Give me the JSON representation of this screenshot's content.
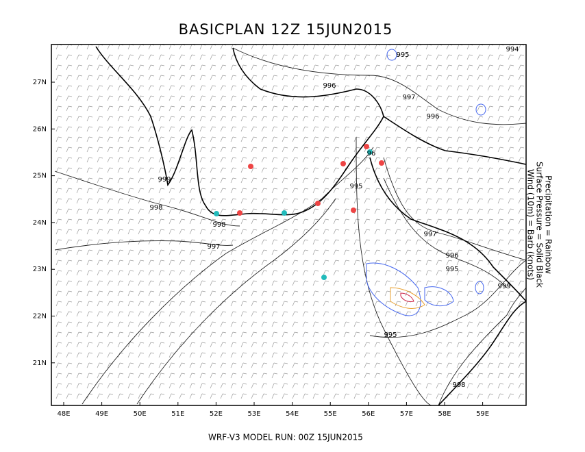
{
  "header": {
    "title": "BASICPLAN 12Z 15JUN2015"
  },
  "footer": {
    "text": "WRF-V3 MODEL RUN: 00Z 15JUN2015"
  },
  "legend": {
    "lines": [
      "Precipitation = Rainbow",
      "Surface Pressure = Solid Black",
      "Wind (10m) = Barb (knots)"
    ]
  },
  "axes": {
    "lon_labels": [
      "48E",
      "49E",
      "50E",
      "51E",
      "52E",
      "53E",
      "54E",
      "55E",
      "56E",
      "57E",
      "58E",
      "59E"
    ],
    "lat_labels": [
      "27N",
      "26N",
      "25N",
      "24N",
      "23N",
      "22N",
      "21N"
    ]
  },
  "contour_labels": [
    "995",
    "994",
    "996",
    "997",
    "996",
    "999",
    "998",
    "998",
    "997",
    "96",
    "995",
    "997",
    "996",
    "995",
    "999",
    "995",
    "998"
  ]
}
